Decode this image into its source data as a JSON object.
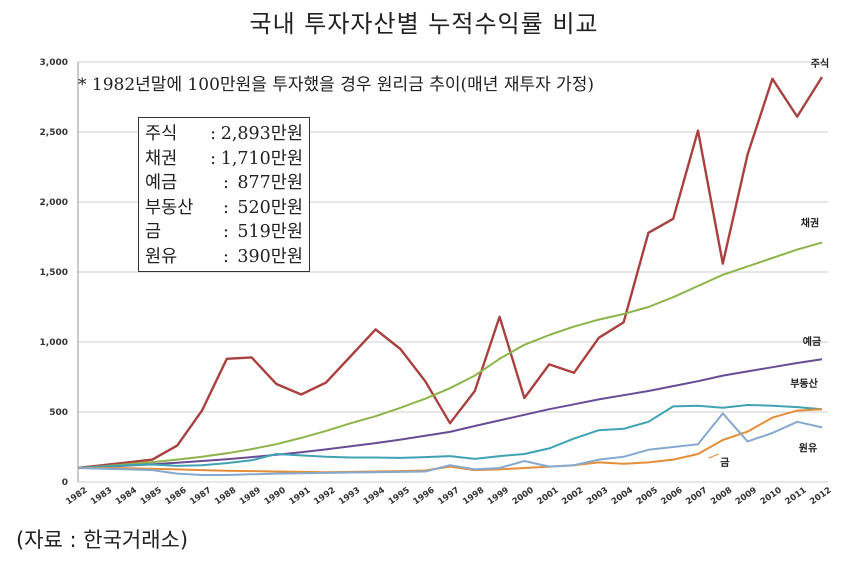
{
  "title": "국내 투자자산별 누적수익률 비교",
  "source": "(자료 : 한국거래소)",
  "note": "* 1982년말에 100만원을 투자했을 경우 원리금 추이(매년 재투자 가정)",
  "summary": [
    {
      "name": "주식",
      "value": "2,893만원"
    },
    {
      "name": "채권",
      "value": "1,710만원"
    },
    {
      "name": "예금",
      "value": "877만원"
    },
    {
      "name": "부동산",
      "value": "520만원"
    },
    {
      "name": "금",
      "value": "519만원"
    },
    {
      "name": "원유",
      "value": "390만원"
    }
  ],
  "colors": {
    "주식": "#a8413f",
    "채권": "#8db44a",
    "예금": "#6a4b96",
    "부동산": "#3fa3b3",
    "금": "#e58e3a",
    "원유": "#86a9cf"
  },
  "chart_data": {
    "type": "line",
    "title": "국내 투자자산별 누적수익률 비교",
    "xlabel": "",
    "ylabel": "",
    "ylim": [
      0,
      3000
    ],
    "yticks": [
      0,
      500,
      1000,
      1500,
      2000,
      2500,
      3000
    ],
    "ytick_labels": [
      "0",
      "500",
      "1,000",
      "1,500",
      "2,000",
      "2,500",
      "3,000"
    ],
    "grid": true,
    "categories": [
      "1982",
      "1983",
      "1984",
      "1985",
      "1986",
      "1987",
      "1988",
      "1989",
      "1990",
      "1991",
      "1992",
      "1993",
      "1994",
      "1995",
      "1996",
      "1997",
      "1998",
      "1999",
      "2000",
      "2001",
      "2002",
      "2003",
      "2004",
      "2005",
      "2006",
      "2007",
      "2008",
      "2009",
      "2010",
      "2011",
      "2012"
    ],
    "series": [
      {
        "name": "주식",
        "values": [
          100,
          120,
          140,
          160,
          260,
          510,
          880,
          890,
          700,
          625,
          710,
          900,
          1090,
          950,
          720,
          420,
          650,
          1180,
          600,
          840,
          780,
          1030,
          1140,
          1780,
          1880,
          2510,
          1560,
          2340,
          2880,
          2610,
          2893
        ]
      },
      {
        "name": "채권",
        "values": [
          100,
          113,
          127,
          142,
          160,
          180,
          205,
          235,
          270,
          315,
          365,
          420,
          470,
          530,
          595,
          670,
          760,
          880,
          980,
          1050,
          1110,
          1160,
          1200,
          1250,
          1320,
          1400,
          1480,
          1540,
          1600,
          1660,
          1710
        ]
      },
      {
        "name": "예금",
        "values": [
          100,
          108,
          117,
          127,
          138,
          150,
          163,
          178,
          195,
          213,
          233,
          255,
          278,
          303,
          330,
          358,
          400,
          440,
          480,
          520,
          555,
          590,
          620,
          650,
          685,
          720,
          760,
          790,
          820,
          850,
          877
        ]
      },
      {
        "name": "부동산",
        "values": [
          100,
          110,
          120,
          125,
          115,
          120,
          135,
          155,
          200,
          190,
          180,
          175,
          175,
          172,
          178,
          185,
          165,
          185,
          200,
          240,
          310,
          370,
          380,
          430,
          540,
          545,
          530,
          550,
          545,
          535,
          520
        ]
      },
      {
        "name": "금",
        "values": [
          100,
          100,
          98,
          95,
          90,
          85,
          80,
          78,
          75,
          72,
          70,
          72,
          75,
          78,
          82,
          110,
          85,
          90,
          100,
          110,
          120,
          140,
          130,
          140,
          160,
          200,
          300,
          360,
          460,
          510,
          519
        ]
      },
      {
        "name": "원유",
        "values": [
          100,
          95,
          90,
          85,
          60,
          50,
          50,
          55,
          60,
          62,
          65,
          68,
          70,
          72,
          75,
          120,
          90,
          100,
          150,
          110,
          120,
          160,
          180,
          230,
          250,
          270,
          490,
          290,
          350,
          430,
          390
        ]
      }
    ],
    "series_labels": [
      "주식",
      "채권",
      "예금",
      "부동산",
      "원유",
      "금"
    ]
  }
}
